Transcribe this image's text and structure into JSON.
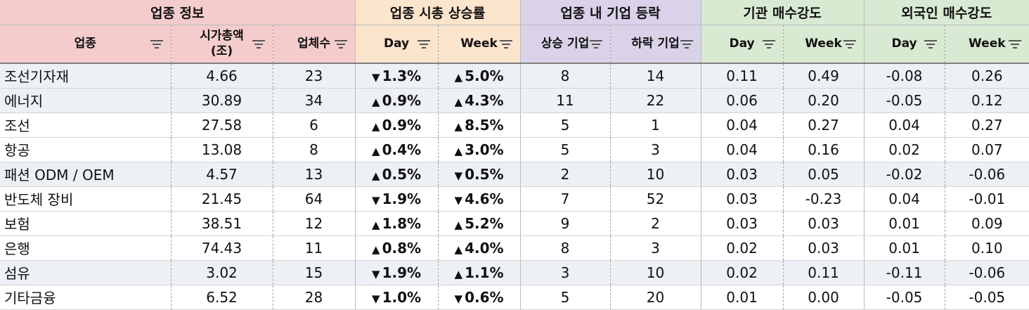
{
  "groups": [
    {
      "label": "업종 정보"
    },
    {
      "label": "업종 시총 상승률"
    },
    {
      "label": "업종 내 기업 등락"
    },
    {
      "label": "기관 매수강도"
    },
    {
      "label": "외국인 매수강도"
    }
  ],
  "columns": [
    {
      "label": "업종"
    },
    {
      "label": "시가총액\n(조)"
    },
    {
      "label": "업체수"
    },
    {
      "label": "Day"
    },
    {
      "label": "Week"
    },
    {
      "label": "상승 기업"
    },
    {
      "label": "하락 기업"
    },
    {
      "label": "Day"
    },
    {
      "label": "Week"
    },
    {
      "label": "Day"
    },
    {
      "label": "Week"
    }
  ],
  "rows": [
    {
      "name": "조선기자재",
      "mcap": "4.66",
      "count": "23",
      "day_dir": "down",
      "day": "1.3%",
      "week_dir": "up",
      "week": "5.0%",
      "rise": "8",
      "fall": "14",
      "inst_day": "0.11",
      "inst_week": "0.49",
      "fore_day": "-0.08",
      "fore_week": "0.26",
      "shaded": true
    },
    {
      "name": "에너지",
      "mcap": "30.89",
      "count": "34",
      "day_dir": "up",
      "day": "0.9%",
      "week_dir": "up",
      "week": "4.3%",
      "rise": "11",
      "fall": "22",
      "inst_day": "0.06",
      "inst_week": "0.20",
      "fore_day": "-0.05",
      "fore_week": "0.12",
      "shaded": true
    },
    {
      "name": "조선",
      "mcap": "27.58",
      "count": "6",
      "day_dir": "up",
      "day": "0.9%",
      "week_dir": "up",
      "week": "8.5%",
      "rise": "5",
      "fall": "1",
      "inst_day": "0.04",
      "inst_week": "0.27",
      "fore_day": "0.04",
      "fore_week": "0.27",
      "shaded": false
    },
    {
      "name": "항공",
      "mcap": "13.08",
      "count": "8",
      "day_dir": "up",
      "day": "0.4%",
      "week_dir": "up",
      "week": "3.0%",
      "rise": "5",
      "fall": "3",
      "inst_day": "0.04",
      "inst_week": "0.16",
      "fore_day": "0.02",
      "fore_week": "0.07",
      "shaded": false
    },
    {
      "name": "패션 ODM / OEM",
      "mcap": "4.57",
      "count": "13",
      "day_dir": "up",
      "day": "0.5%",
      "week_dir": "down",
      "week": "0.5%",
      "rise": "2",
      "fall": "10",
      "inst_day": "0.03",
      "inst_week": "0.05",
      "fore_day": "-0.02",
      "fore_week": "-0.06",
      "shaded": true
    },
    {
      "name": "반도체 장비",
      "mcap": "21.45",
      "count": "64",
      "day_dir": "down",
      "day": "1.9%",
      "week_dir": "down",
      "week": "4.6%",
      "rise": "7",
      "fall": "52",
      "inst_day": "0.03",
      "inst_week": "-0.23",
      "fore_day": "0.04",
      "fore_week": "-0.01",
      "shaded": false
    },
    {
      "name": "보험",
      "mcap": "38.51",
      "count": "12",
      "day_dir": "up",
      "day": "1.8%",
      "week_dir": "up",
      "week": "5.2%",
      "rise": "9",
      "fall": "2",
      "inst_day": "0.03",
      "inst_week": "0.03",
      "fore_day": "0.01",
      "fore_week": "0.09",
      "shaded": false
    },
    {
      "name": "은행",
      "mcap": "74.43",
      "count": "11",
      "day_dir": "up",
      "day": "0.8%",
      "week_dir": "up",
      "week": "4.0%",
      "rise": "8",
      "fall": "3",
      "inst_day": "0.02",
      "inst_week": "0.03",
      "fore_day": "0.01",
      "fore_week": "0.10",
      "shaded": false
    },
    {
      "name": "섬유",
      "mcap": "3.02",
      "count": "15",
      "day_dir": "down",
      "day": "1.9%",
      "week_dir": "up",
      "week": "1.1%",
      "rise": "3",
      "fall": "10",
      "inst_day": "0.02",
      "inst_week": "0.11",
      "fore_day": "-0.11",
      "fore_week": "-0.06",
      "shaded": true
    },
    {
      "name": "기타금융",
      "mcap": "6.52",
      "count": "28",
      "day_dir": "down",
      "day": "1.0%",
      "week_dir": "down",
      "week": "0.6%",
      "rise": "5",
      "fall": "20",
      "inst_day": "0.01",
      "inst_week": "0.00",
      "fore_day": "-0.05",
      "fore_week": "-0.05",
      "shaded": false
    }
  ],
  "colors": {
    "up": "#ee1111",
    "down": "#1122dd",
    "group_info": "#f4cccc",
    "group_mcap_change": "#fce5cd",
    "group_company_count": "#d9d2e9",
    "group_institution": "#d9ead3",
    "group_foreign": "#d9ead3",
    "row_shade": "#edf0f5"
  },
  "icons": {
    "filter": "filter-funnel-icon",
    "up": "triangle-up-icon",
    "down": "triangle-down-icon"
  }
}
